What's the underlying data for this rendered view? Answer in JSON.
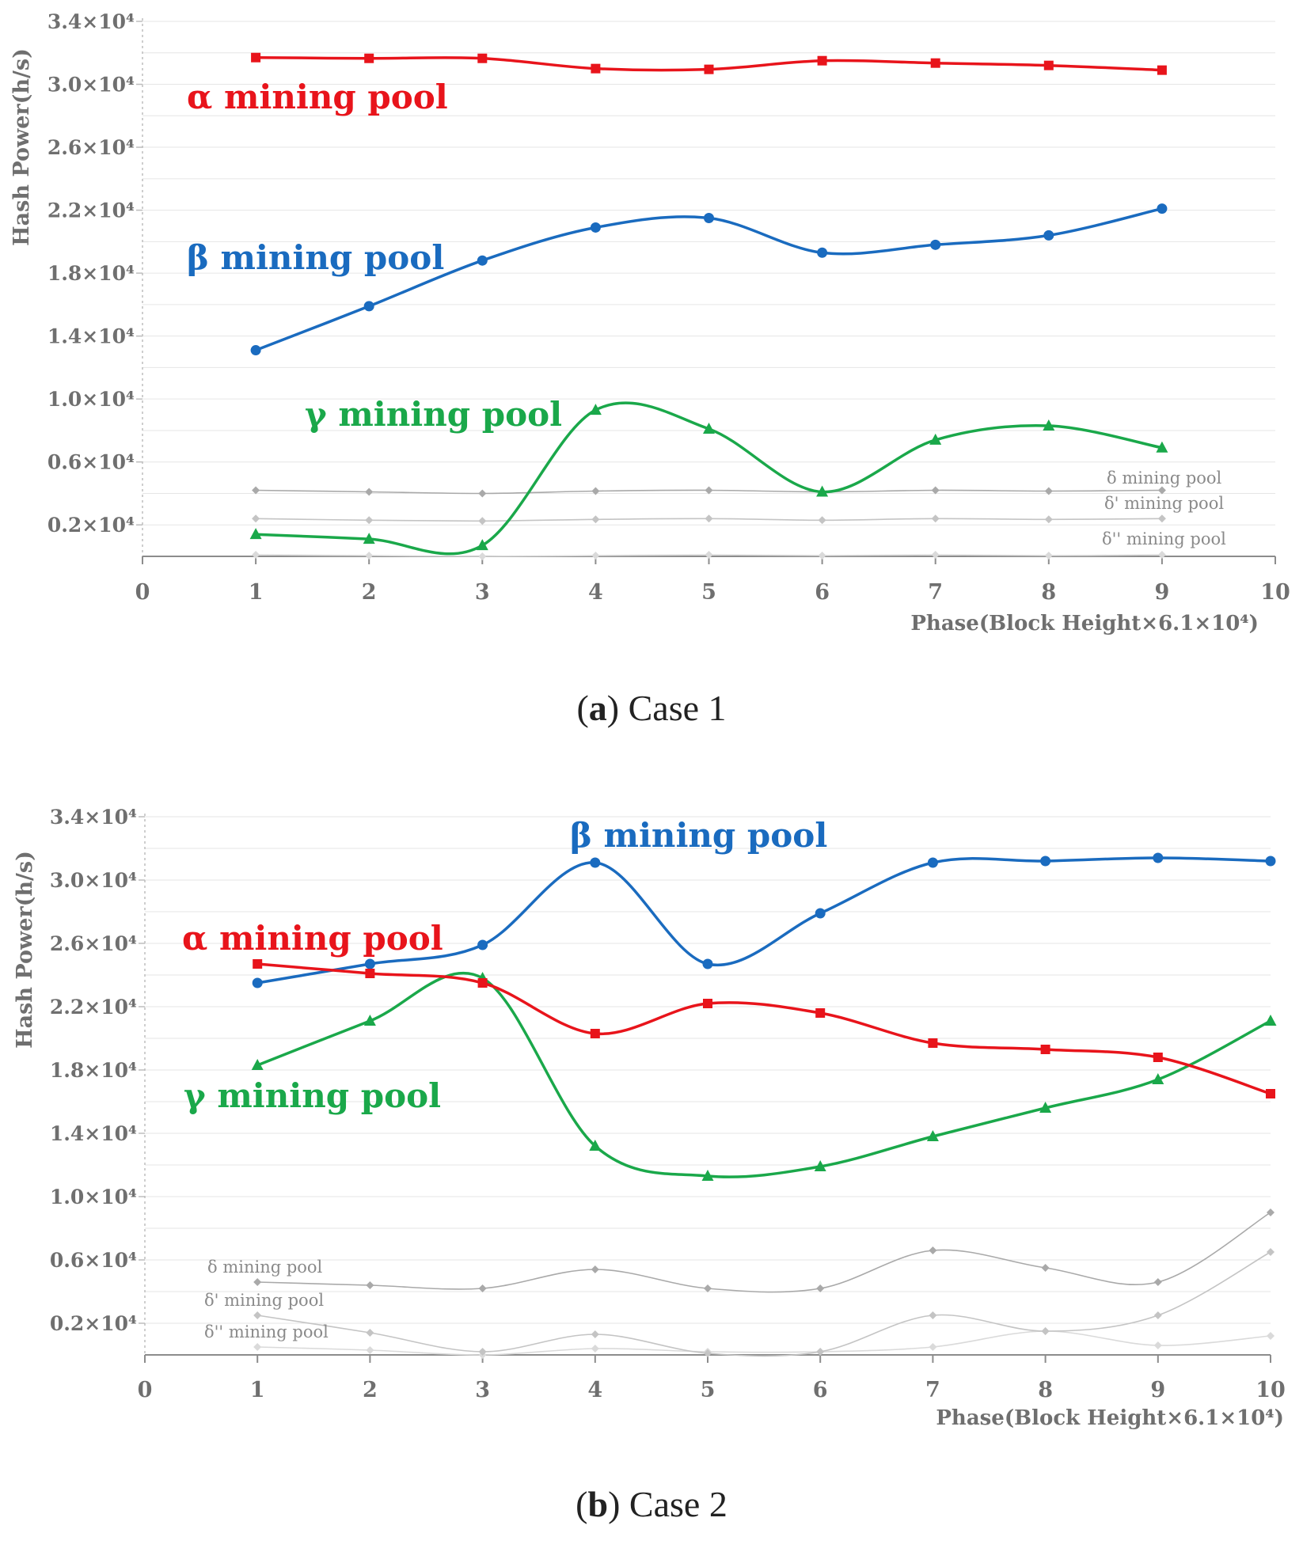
{
  "colors": {
    "alpha": "#e8141b",
    "beta": "#1a6bbf",
    "gamma": "#1aa84a",
    "delta": "#a9a9a9",
    "delta1": "#c4c4c4",
    "delta2": "#dadada",
    "axis": "#6f6f6f"
  },
  "captions": [
    {
      "tag": "a",
      "text": "Case 1"
    },
    {
      "tag": "b",
      "text": "Case 2"
    }
  ],
  "chart_data": [
    {
      "type": "line",
      "title": "Case 1",
      "xlabel": "Phase(Block Height×6.1×10⁴)",
      "ylabel": "Hash Power(h/s)",
      "xlim": [
        0,
        10
      ],
      "ylim": [
        0,
        34000
      ],
      "x_ticks": [
        "0",
        "1",
        "2",
        "3",
        "4",
        "5",
        "6",
        "7",
        "8",
        "9",
        "10"
      ],
      "y_ticks": [
        {
          "value": 2000,
          "label": "0.2×10⁴"
        },
        {
          "value": 6000,
          "label": "0.6×10⁴"
        },
        {
          "value": 10000,
          "label": "1.0×10⁴"
        },
        {
          "value": 14000,
          "label": "1.4×10⁴"
        },
        {
          "value": 18000,
          "label": "1.8×10⁴"
        },
        {
          "value": 22000,
          "label": "2.2×10⁴"
        },
        {
          "value": 26000,
          "label": "2.6×10⁴"
        },
        {
          "value": 30000,
          "label": "3.0×10⁴"
        },
        {
          "value": 34000,
          "label": "3.4×10⁴"
        }
      ],
      "series": [
        {
          "name": "α mining pool",
          "key": "alpha",
          "marker": "square",
          "x": [
            1,
            2,
            3,
            4,
            5,
            6,
            7,
            8,
            9
          ],
          "values": [
            31700,
            31650,
            31650,
            31000,
            30950,
            31500,
            31350,
            31200,
            30900
          ]
        },
        {
          "name": "β mining pool",
          "key": "beta",
          "marker": "circle",
          "x": [
            1,
            2,
            3,
            4,
            5,
            6,
            7,
            8,
            9
          ],
          "values": [
            13100,
            15900,
            18800,
            20900,
            21500,
            19300,
            19800,
            20400,
            22100
          ]
        },
        {
          "name": "γ mining pool",
          "key": "gamma",
          "marker": "triangle",
          "x": [
            1,
            2,
            3,
            4,
            5,
            6,
            7,
            8,
            9
          ],
          "values": [
            1400,
            1100,
            700,
            9300,
            8100,
            4100,
            7400,
            8300,
            6900
          ]
        },
        {
          "name": "δ mining pool",
          "key": "delta",
          "marker": "diamond",
          "x": [
            1,
            2,
            3,
            4,
            5,
            6,
            7,
            8,
            9
          ],
          "values": [
            4200,
            4100,
            4000,
            4150,
            4200,
            4100,
            4200,
            4150,
            4200
          ]
        },
        {
          "name": "δ' mining pool",
          "key": "delta1",
          "marker": "diamond",
          "x": [
            1,
            2,
            3,
            4,
            5,
            6,
            7,
            8,
            9
          ],
          "values": [
            2400,
            2300,
            2250,
            2350,
            2400,
            2300,
            2400,
            2350,
            2400
          ]
        },
        {
          "name": "δ'' mining pool",
          "key": "delta2",
          "marker": "diamond",
          "x": [
            1,
            2,
            3,
            4,
            5,
            6,
            7,
            8,
            9
          ],
          "values": [
            100,
            50,
            0,
            50,
            100,
            50,
            100,
            50,
            100
          ]
        }
      ]
    },
    {
      "type": "line",
      "title": "Case 2",
      "xlabel": "Phase(Block Height×6.1×10⁴)",
      "ylabel": "Hash Power(h/s)",
      "xlim": [
        0,
        10
      ],
      "ylim": [
        0,
        34000
      ],
      "x_ticks": [
        "0",
        "1",
        "2",
        "3",
        "4",
        "5",
        "6",
        "7",
        "8",
        "9",
        "10"
      ],
      "y_ticks": [
        {
          "value": 2000,
          "label": "0.2×10⁴"
        },
        {
          "value": 6000,
          "label": "0.6×10⁴"
        },
        {
          "value": 10000,
          "label": "1.0×10⁴"
        },
        {
          "value": 14000,
          "label": "1.4×10⁴"
        },
        {
          "value": 18000,
          "label": "1.8×10⁴"
        },
        {
          "value": 22000,
          "label": "2.2×10⁴"
        },
        {
          "value": 26000,
          "label": "2.6×10⁴"
        },
        {
          "value": 30000,
          "label": "3.0×10⁴"
        },
        {
          "value": 34000,
          "label": "3.4×10⁴"
        }
      ],
      "series": [
        {
          "name": "α mining pool",
          "key": "alpha",
          "marker": "square",
          "x": [
            1,
            2,
            3,
            4,
            5,
            6,
            7,
            8,
            9,
            10
          ],
          "values": [
            24700,
            24100,
            23500,
            20300,
            22200,
            21600,
            19700,
            19300,
            18800,
            16500
          ]
        },
        {
          "name": "β mining pool",
          "key": "beta",
          "marker": "circle",
          "x": [
            1,
            2,
            3,
            4,
            5,
            6,
            7,
            8,
            9,
            10
          ],
          "values": [
            23500,
            24700,
            25900,
            31100,
            24700,
            27900,
            31100,
            31200,
            31400,
            31200
          ]
        },
        {
          "name": "γ mining pool",
          "key": "gamma",
          "marker": "triangle",
          "x": [
            1,
            2,
            3,
            4,
            5,
            6,
            7,
            8,
            9,
            10
          ],
          "values": [
            18300,
            21100,
            23800,
            13200,
            11300,
            11900,
            13800,
            15600,
            17400,
            21100
          ]
        },
        {
          "name": "δ mining pool",
          "key": "delta",
          "marker": "diamond",
          "x": [
            1,
            2,
            3,
            4,
            5,
            6,
            7,
            8,
            9,
            10
          ],
          "values": [
            4600,
            4400,
            4200,
            5400,
            4200,
            4200,
            6600,
            5500,
            4600,
            9000
          ]
        },
        {
          "name": "δ' mining pool",
          "key": "delta1",
          "marker": "diamond",
          "x": [
            1,
            2,
            3,
            4,
            5,
            6,
            7,
            8,
            9,
            10
          ],
          "values": [
            2500,
            1400,
            200,
            1300,
            100,
            200,
            2500,
            1500,
            2500,
            6500
          ]
        },
        {
          "name": "δ'' mining pool",
          "key": "delta2",
          "marker": "diamond",
          "x": [
            1,
            2,
            3,
            4,
            5,
            6,
            7,
            8,
            9,
            10
          ],
          "values": [
            500,
            300,
            0,
            400,
            200,
            200,
            500,
            1500,
            600,
            1200
          ]
        }
      ]
    }
  ]
}
